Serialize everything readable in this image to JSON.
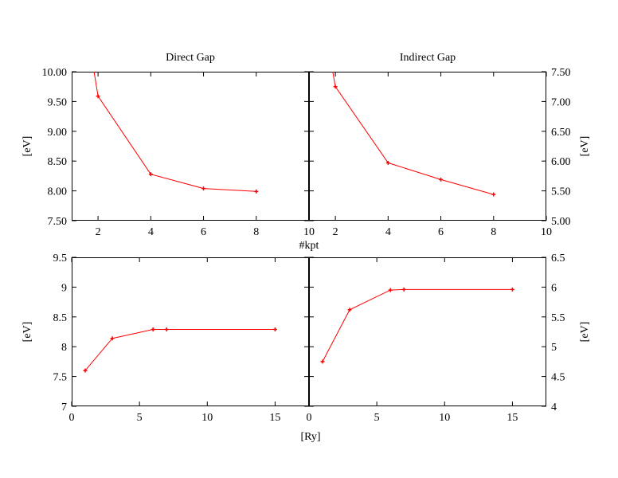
{
  "figure": {
    "shared_xlabel_top": "#kpt",
    "shared_xlabel_bottom": "[Ry]"
  },
  "colors": {
    "series": "#ff0000",
    "axes": "#000000",
    "background": "#ffffff"
  },
  "chart_data": [
    {
      "type": "line",
      "title": "Direct Gap",
      "ylabel": "[eV]",
      "xlabel": "#kpt",
      "xlim": [
        1,
        10
      ],
      "ylim": [
        7.5,
        10.0
      ],
      "xticks": [
        2,
        4,
        6,
        8,
        10
      ],
      "xtick_labels": [
        "2",
        "4",
        "6",
        "8",
        "10"
      ],
      "yticks": [
        7.5,
        8.0,
        8.5,
        9.0,
        9.5,
        10.0
      ],
      "ytick_labels": [
        "7.50",
        "8.00",
        "8.50",
        "9.00",
        "9.50",
        "10.00"
      ],
      "series": [
        {
          "x": [
            1.85,
            2,
            4,
            6,
            8
          ],
          "y": [
            10.0,
            9.59,
            8.28,
            8.04,
            7.99
          ]
        }
      ]
    },
    {
      "type": "line",
      "title": "Indirect Gap",
      "ylabel": "[eV]",
      "xlabel": "#kpt",
      "xlim": [
        1,
        10
      ],
      "ylim": [
        5.0,
        7.5
      ],
      "xticks": [
        2,
        4,
        6,
        8,
        10
      ],
      "xtick_labels": [
        "2",
        "4",
        "6",
        "8",
        "10"
      ],
      "yticks": [
        5.0,
        5.5,
        6.0,
        6.5,
        7.0,
        7.5
      ],
      "ytick_labels": [
        "5.00",
        "5.50",
        "6.00",
        "6.50",
        "7.00",
        "7.50"
      ],
      "series": [
        {
          "x": [
            1.9,
            2,
            4,
            6,
            8
          ],
          "y": [
            7.5,
            7.25,
            5.97,
            5.69,
            5.44
          ]
        }
      ]
    },
    {
      "type": "line",
      "title": "",
      "ylabel": "[eV]",
      "xlabel": "[Ry]",
      "xlim": [
        0,
        17.5
      ],
      "ylim": [
        7,
        9.5
      ],
      "xticks": [
        0,
        5,
        10,
        15
      ],
      "xtick_labels": [
        "0",
        "5",
        "10",
        "15"
      ],
      "yticks": [
        7,
        7.5,
        8,
        8.5,
        9,
        9.5
      ],
      "ytick_labels": [
        "7",
        "7.5",
        "8",
        "8.5",
        "9",
        "9.5"
      ],
      "series": [
        {
          "x": [
            1,
            3,
            6,
            7,
            15
          ],
          "y": [
            7.6,
            8.14,
            8.29,
            8.29,
            8.29
          ]
        }
      ]
    },
    {
      "type": "line",
      "title": "",
      "ylabel": "[eV]",
      "xlabel": "[Ry]",
      "xlim": [
        0,
        17.5
      ],
      "ylim": [
        4,
        6.5
      ],
      "xticks": [
        0,
        5,
        10,
        15
      ],
      "xtick_labels": [
        "0",
        "5",
        "10",
        "15"
      ],
      "yticks": [
        4,
        4.5,
        5,
        5.5,
        6,
        6.5
      ],
      "ytick_labels": [
        "4",
        "4.5",
        "5",
        "5.5",
        "6",
        "6.5"
      ],
      "series": [
        {
          "x": [
            1,
            3,
            6,
            7,
            15
          ],
          "y": [
            4.75,
            5.62,
            5.95,
            5.96,
            5.96
          ]
        }
      ]
    }
  ]
}
